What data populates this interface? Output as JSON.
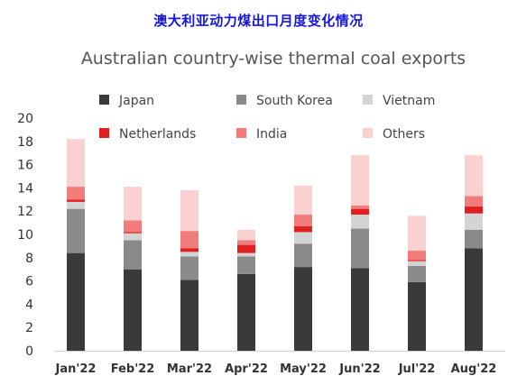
{
  "page_title": "澳大利亚动力煤出口月度变化情况",
  "colors": {
    "Japan": "#3a3a3a",
    "South Korea": "#8a8a8a",
    "Vietnam": "#d4d4d4",
    "Netherlands": "#e02020",
    "India": "#f27b7b",
    "Others": "#fbd0d0"
  },
  "chart_data": {
    "type": "bar",
    "stacked": true,
    "title": "Australian country-wise thermal coal exports",
    "xlabel": "",
    "ylabel": "",
    "ylim": [
      0,
      20
    ],
    "yticks": [
      0,
      2,
      4,
      6,
      8,
      10,
      12,
      14,
      16,
      18,
      20
    ],
    "grid": false,
    "legend_position": "top",
    "categories": [
      "Jan'22",
      "Feb'22",
      "Mar'22",
      "Apr'22",
      "May'22",
      "Jun'22",
      "Jul'22",
      "Aug'22"
    ],
    "series": [
      {
        "name": "Japan",
        "values": [
          8.4,
          7.0,
          6.1,
          6.6,
          7.2,
          7.1,
          5.9,
          8.8
        ]
      },
      {
        "name": "South Korea",
        "values": [
          3.8,
          2.5,
          2.0,
          1.5,
          2.0,
          3.4,
          1.4,
          1.6
        ]
      },
      {
        "name": "Vietnam",
        "values": [
          0.6,
          0.6,
          0.4,
          0.3,
          1.0,
          1.2,
          0.4,
          1.4
        ]
      },
      {
        "name": "Netherlands",
        "values": [
          0.2,
          0.1,
          0.3,
          0.7,
          0.5,
          0.5,
          0.1,
          0.6
        ]
      },
      {
        "name": "India",
        "values": [
          1.1,
          1.0,
          1.5,
          0.4,
          1.0,
          0.3,
          0.8,
          0.9
        ]
      },
      {
        "name": "Others",
        "values": [
          4.1,
          2.9,
          3.5,
          0.9,
          2.5,
          4.3,
          3.0,
          3.5
        ]
      }
    ]
  }
}
